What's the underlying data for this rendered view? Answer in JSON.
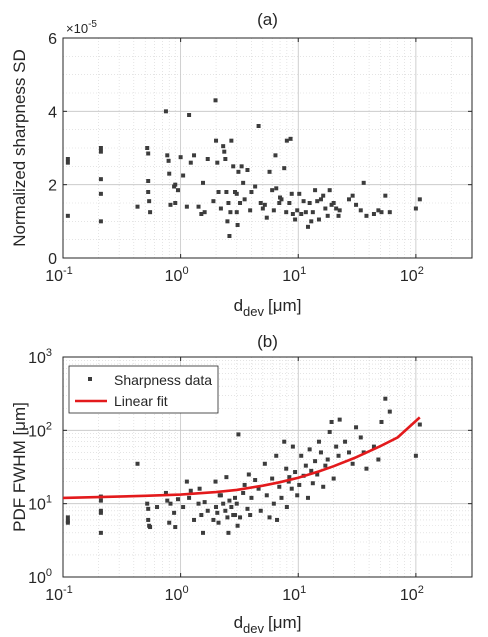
{
  "chart_data": [
    {
      "type": "scatter",
      "title": "(a)",
      "xlabel": "d",
      "xlabel_sub": "dev",
      "xlabel_unit": "[μm]",
      "ylabel": "Normalized sharpness SD",
      "y_exponent_label": "×10",
      "y_exponent": "-5",
      "xscale": "log",
      "xlim": [
        0.1,
        300
      ],
      "ylim": [
        0,
        6
      ],
      "xticks": [
        0.1,
        1,
        10,
        100
      ],
      "xtick_base": "10",
      "xtick_exponents": [
        "-1",
        "0",
        "1",
        "2"
      ],
      "yticks": [
        0,
        2,
        4,
        6
      ],
      "ytick_labels": [
        "0",
        "2",
        "4",
        "6"
      ],
      "grid": true,
      "point_color": "#3c3c3c",
      "series": [
        {
          "x": [
            0.11,
            0.11,
            0.11,
            0.21,
            0.21,
            0.21,
            0.21,
            0.21,
            0.43,
            0.52,
            0.53,
            0.53,
            0.53,
            0.54,
            0.55,
            0.75,
            0.77,
            0.79,
            0.8,
            0.82,
            0.88,
            0.9,
            0.95,
            1.05,
            1.13,
            1.18,
            1.22,
            1.3,
            1.42,
            1.5,
            1.55,
            1.6,
            1.7,
            1.9,
            1.98,
            2.0,
            2.05,
            2.1,
            2.2,
            2.3,
            2.35,
            2.4,
            2.45,
            2.5,
            2.55,
            2.6,
            2.7,
            2.8,
            2.9,
            3.0,
            3.0,
            3.05,
            3.1,
            3.2,
            3.4,
            3.5,
            3.7,
            3.9,
            4.0,
            4.3,
            4.6,
            4.8,
            5.2,
            5.4,
            5.7,
            6.0,
            6.2,
            6.5,
            6.9,
            7.2,
            7.6,
            7.9,
            8.0,
            8.4,
            8.8,
            9.0,
            9.4,
            9.8,
            10.2,
            10.6,
            11.1,
            11.6,
            12.1,
            12.5,
            12.9,
            13.3,
            13.9,
            14.5,
            15.0,
            15.6,
            16.3,
            17.0,
            17.8,
            18.5,
            19.2,
            20.0,
            21.0,
            22.0,
            22.5,
            27.0,
            29.0,
            31.0,
            34.0,
            36.0,
            38.0,
            44.0,
            48.0,
            51.0,
            55.0,
            60.0,
            100.0,
            108.0,
            2.65,
            5.0,
            7.0,
            8.6,
            1.0,
            0.9,
            3.3,
            6.4
          ],
          "y": [
            2.7,
            2.6,
            1.15,
            3.0,
            2.9,
            2.15,
            1.75,
            1.0,
            1.4,
            3.0,
            2.85,
            2.1,
            1.8,
            1.55,
            1.25,
            4.0,
            2.8,
            2.65,
            2.3,
            1.45,
            1.95,
            1.5,
            1.85,
            2.25,
            1.4,
            3.9,
            2.6,
            2.8,
            1.4,
            1.2,
            2.05,
            1.25,
            2.7,
            1.55,
            4.3,
            3.2,
            2.6,
            1.8,
            1.35,
            3.05,
            2.9,
            2.7,
            1.8,
            1.0,
            1.5,
            0.6,
            3.2,
            2.5,
            1.8,
            1.75,
            1.25,
            0.9,
            2.35,
            1.5,
            2.05,
            1.6,
            2.4,
            1.3,
            1.8,
            1.95,
            3.6,
            1.5,
            1.45,
            1.1,
            2.35,
            1.85,
            1.3,
            1.9,
            1.5,
            1.6,
            2.45,
            1.25,
            3.2,
            1.5,
            1.75,
            1.2,
            1.05,
            1.3,
            1.75,
            1.2,
            1.55,
            1.25,
            0.85,
            1.5,
            1.0,
            1.25,
            1.85,
            1.55,
            1.05,
            1.6,
            1.7,
            1.35,
            1.15,
            1.85,
            1.45,
            1.5,
            1.35,
            1.15,
            1.3,
            1.6,
            1.7,
            1.45,
            1.3,
            2.05,
            1.15,
            1.2,
            1.3,
            1.25,
            1.7,
            1.25,
            1.35,
            1.6,
            1.25,
            1.35,
            1.65,
            3.25,
            2.75,
            2.0,
            2.5,
            2.8
          ]
        }
      ]
    },
    {
      "type": "scatter",
      "title": "(b)",
      "xlabel": "d",
      "xlabel_sub": "dev",
      "xlabel_unit": "[μm]",
      "ylabel": "PDF FWHM [μm]",
      "xscale": "log",
      "yscale": "log",
      "xlim": [
        0.1,
        300
      ],
      "ylim": [
        1,
        1000
      ],
      "xticks": [
        0.1,
        1,
        10,
        100
      ],
      "xtick_base": "10",
      "xtick_exponents": [
        "-1",
        "0",
        "1",
        "2"
      ],
      "yticks": [
        1,
        10,
        100,
        1000
      ],
      "ytick_base": "10",
      "ytick_exponents": [
        "0",
        "1",
        "2",
        "3"
      ],
      "grid": true,
      "legend_position": "top-left",
      "point_color": "#3c3c3c",
      "fit_color": "#e31a1c",
      "series": [
        {
          "name": "Sharpness data",
          "x": [
            0.11,
            0.11,
            0.11,
            0.21,
            0.21,
            0.21,
            0.21,
            0.21,
            0.43,
            0.52,
            0.53,
            0.53,
            0.54,
            0.55,
            0.75,
            0.77,
            0.8,
            0.82,
            0.88,
            0.9,
            0.95,
            1.05,
            1.13,
            1.18,
            1.22,
            1.3,
            1.42,
            1.5,
            1.55,
            1.6,
            1.7,
            1.9,
            1.98,
            2.0,
            2.05,
            2.1,
            2.2,
            2.3,
            2.4,
            2.45,
            2.5,
            2.55,
            2.6,
            2.7,
            2.8,
            2.9,
            3.0,
            3.05,
            3.1,
            3.2,
            3.4,
            3.5,
            3.7,
            3.9,
            4.0,
            4.3,
            4.6,
            4.8,
            5.2,
            5.4,
            5.7,
            6.0,
            6.2,
            6.5,
            6.9,
            7.2,
            7.6,
            7.9,
            8.0,
            8.4,
            8.8,
            9.0,
            9.4,
            9.8,
            10.2,
            10.6,
            11.1,
            11.6,
            12.1,
            12.5,
            12.9,
            13.3,
            13.9,
            14.5,
            15.0,
            15.6,
            16.3,
            17.0,
            17.8,
            18.5,
            19.2,
            20.0,
            21.0,
            22.0,
            22.5,
            25.0,
            27.0,
            29.0,
            31.0,
            34.0,
            36.0,
            38.0,
            44.0,
            48.0,
            51.0,
            55.0,
            60.0,
            100.0,
            108.0,
            2.9,
            3.8,
            6.6,
            8.3,
            1.45,
            0.63,
            2.15
          ],
          "y": [
            6.5,
            5.8,
            5.5,
            12.5,
            11.0,
            8.0,
            7.5,
            4.0,
            35.0,
            10.0,
            8.5,
            6.0,
            5.0,
            4.8,
            14.0,
            11.0,
            5.5,
            10.0,
            7.5,
            4.8,
            11.5,
            9.0,
            20.0,
            12.0,
            15.0,
            6.0,
            10.0,
            7.0,
            4.0,
            10.5,
            8.0,
            6.0,
            20.0,
            9.0,
            7.5,
            5.5,
            13.0,
            10.0,
            8.0,
            23.0,
            6.5,
            4.0,
            11.0,
            9.0,
            7.0,
            12.0,
            10.0,
            5.0,
            88.0,
            6.5,
            14.0,
            18.0,
            8.5,
            7.0,
            12.0,
            21.0,
            16.0,
            8.0,
            35.0,
            13.0,
            6.5,
            22.0,
            10.0,
            45.0,
            17.0,
            12.0,
            70.0,
            30.0,
            9.0,
            23.0,
            16.0,
            60.0,
            27.0,
            13.0,
            18.0,
            45.0,
            24.0,
            33.0,
            12.0,
            55.0,
            28.0,
            19.0,
            38.0,
            25.0,
            70.0,
            50.0,
            17.0,
            33.0,
            40.0,
            95.0,
            130.0,
            22.0,
            60.0,
            45.0,
            140.0,
            70.0,
            50.0,
            35.0,
            110.0,
            80.0,
            50.0,
            30.0,
            60.0,
            40.0,
            130.0,
            270.0,
            180.0,
            45.0,
            120.0,
            7.0,
            25.0,
            6.0,
            20.0,
            16.0,
            9.0,
            13.0
          ]
        },
        {
          "name": "Linear fit",
          "x": [
            0.1,
            0.2,
            0.5,
            1.0,
            2.0,
            3.0,
            5.0,
            7.0,
            10.0,
            15.0,
            20.0,
            30.0,
            50.0,
            70.0,
            108.0
          ],
          "y": [
            12.0,
            12.3,
            12.8,
            13.3,
            14.4,
            15.4,
            17.6,
            19.6,
            22.5,
            27.5,
            32.4,
            42.0,
            61.0,
            80.0,
            150.0
          ]
        }
      ]
    }
  ]
}
